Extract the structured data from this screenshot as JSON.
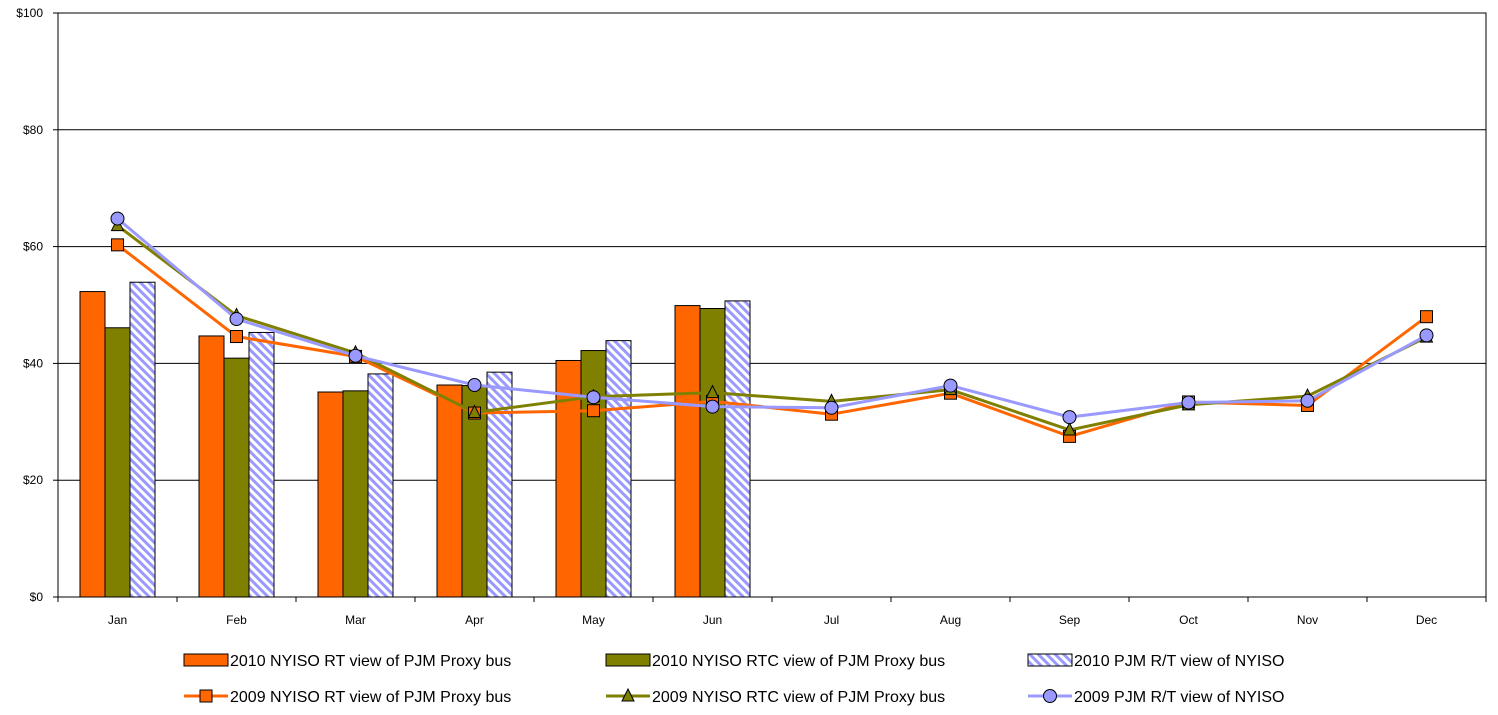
{
  "chart_data": {
    "type": "bar",
    "title": "",
    "xlabel": "",
    "ylabel": "",
    "ylim": [
      0,
      100
    ],
    "yticks": [
      0,
      20,
      40,
      60,
      80,
      100
    ],
    "ytick_labels": [
      "$0",
      "$20",
      "$40",
      "$60",
      "$80",
      "$100"
    ],
    "grid": true,
    "legend_position": "bottom",
    "categories": [
      "Jan",
      "Feb",
      "Mar",
      "Apr",
      "May",
      "Jun",
      "Jul",
      "Aug",
      "Sep",
      "Oct",
      "Nov",
      "Dec"
    ],
    "bar_series": [
      {
        "name": "2010 NYISO RT view of PJM Proxy bus",
        "color": "#ff6600",
        "pattern": "solid",
        "values": [
          52.3,
          44.7,
          35.1,
          36.3,
          40.5,
          49.9,
          null,
          null,
          null,
          null,
          null,
          null
        ]
      },
      {
        "name": "2010 NYISO RTC view of PJM Proxy bus",
        "color": "#808000",
        "pattern": "solid",
        "values": [
          46.1,
          40.9,
          35.3,
          36.2,
          42.2,
          49.4,
          null,
          null,
          null,
          null,
          null,
          null
        ]
      },
      {
        "name": "2010 PJM R/T view of NYISO",
        "color": "#9999ff",
        "pattern": "hatched",
        "values": [
          53.9,
          45.3,
          38.2,
          38.5,
          43.9,
          50.7,
          null,
          null,
          null,
          null,
          null,
          null
        ]
      }
    ],
    "line_series": [
      {
        "name": "2009 NYISO RT view of PJM Proxy bus",
        "color": "#ff6600",
        "marker": "square",
        "values": [
          60.3,
          44.6,
          41.2,
          31.5,
          31.9,
          33.5,
          31.3,
          34.9,
          27.5,
          33.4,
          32.8,
          48.0
        ]
      },
      {
        "name": "2009 NYISO RTC view of PJM Proxy bus",
        "color": "#808000",
        "marker": "triangle",
        "values": [
          63.6,
          48.2,
          41.8,
          31.6,
          34.3,
          35.0,
          33.5,
          35.5,
          28.6,
          32.9,
          34.4,
          44.5
        ]
      },
      {
        "name": "2009 PJM R/T view of NYISO",
        "color": "#9999ff",
        "marker": "circle",
        "values": [
          64.8,
          47.6,
          41.3,
          36.3,
          34.2,
          32.6,
          32.4,
          36.2,
          30.8,
          33.3,
          33.6,
          44.8
        ]
      }
    ]
  }
}
